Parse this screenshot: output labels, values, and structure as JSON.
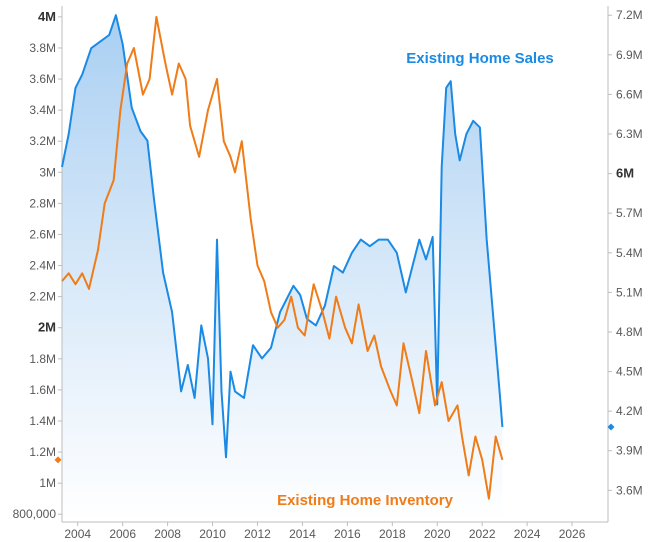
{
  "chart_data": {
    "type": "line",
    "title": "",
    "xlabel": "",
    "ylabel": "",
    "x_ticks": [
      "2004",
      "2006",
      "2008",
      "2010",
      "2012",
      "2014",
      "2016",
      "2018",
      "2020",
      "2022",
      "2024",
      "2026"
    ],
    "xlim": [
      2003.3,
      2027.6
    ],
    "left_axis": {
      "ylim": [
        750000,
        4070000
      ],
      "ticks": [
        {
          "value": 800000,
          "label": "800,000",
          "bold": false
        },
        {
          "value": 1000000,
          "label": "1M",
          "bold": false
        },
        {
          "value": 1200000,
          "label": "1.2M",
          "bold": false
        },
        {
          "value": 1400000,
          "label": "1.4M",
          "bold": false
        },
        {
          "value": 1600000,
          "label": "1.6M",
          "bold": false
        },
        {
          "value": 1800000,
          "label": "1.8M",
          "bold": false
        },
        {
          "value": 2000000,
          "label": "2M",
          "bold": true
        },
        {
          "value": 2200000,
          "label": "2.2M",
          "bold": false
        },
        {
          "value": 2400000,
          "label": "2.4M",
          "bold": false
        },
        {
          "value": 2600000,
          "label": "2.6M",
          "bold": false
        },
        {
          "value": 2800000,
          "label": "2.8M",
          "bold": false
        },
        {
          "value": 3000000,
          "label": "3M",
          "bold": false
        },
        {
          "value": 3200000,
          "label": "3.2M",
          "bold": false
        },
        {
          "value": 3400000,
          "label": "3.4M",
          "bold": false
        },
        {
          "value": 3600000,
          "label": "3.6M",
          "bold": false
        },
        {
          "value": 3800000,
          "label": "3.8M",
          "bold": false
        },
        {
          "value": 4000000,
          "label": "4M",
          "bold": true
        }
      ]
    },
    "right_axis": {
      "ylim": [
        3360000,
        7270000
      ],
      "ticks": [
        {
          "value": 3600000,
          "label": "3.6M",
          "bold": false
        },
        {
          "value": 3900000,
          "label": "3.9M",
          "bold": false
        },
        {
          "value": 4200000,
          "label": "4.2M",
          "bold": false
        },
        {
          "value": 4500000,
          "label": "4.5M",
          "bold": false
        },
        {
          "value": 4800000,
          "label": "4.8M",
          "bold": false
        },
        {
          "value": 5100000,
          "label": "5.1M",
          "bold": false
        },
        {
          "value": 5400000,
          "label": "5.4M",
          "bold": false
        },
        {
          "value": 5700000,
          "label": "5.7M",
          "bold": false
        },
        {
          "value": 6000000,
          "label": "6M",
          "bold": true
        },
        {
          "value": 6300000,
          "label": "6.3M",
          "bold": false
        },
        {
          "value": 6600000,
          "label": "6.6M",
          "bold": false
        },
        {
          "value": 6900000,
          "label": "6.9M",
          "bold": false
        },
        {
          "value": 7200000,
          "label": "7.2M",
          "bold": false
        }
      ]
    },
    "series": [
      {
        "name": "Existing Home Sales",
        "axis": "right",
        "color": "#1a8ae5",
        "style": "area",
        "last_value": 4080000,
        "x": [
          2003.3,
          2003.6,
          2003.9,
          2004.2,
          2004.6,
          2005.0,
          2005.4,
          2005.7,
          2006.0,
          2006.4,
          2006.8,
          2007.1,
          2007.4,
          2007.8,
          2008.2,
          2008.6,
          2008.9,
          2009.2,
          2009.5,
          2009.8,
          2010.0,
          2010.2,
          2010.4,
          2010.6,
          2010.8,
          2011.0,
          2011.4,
          2011.8,
          2012.2,
          2012.6,
          2013.0,
          2013.3,
          2013.6,
          2013.9,
          2014.2,
          2014.6,
          2015.0,
          2015.4,
          2015.8,
          2016.2,
          2016.6,
          2017.0,
          2017.4,
          2017.8,
          2018.2,
          2018.6,
          2018.9,
          2019.2,
          2019.5,
          2019.8,
          2020.0,
          2020.2,
          2020.4,
          2020.6,
          2020.8,
          2021.0,
          2021.3,
          2021.6,
          2021.9,
          2022.2,
          2022.5,
          2022.8,
          2022.9
        ],
        "y": [
          6050000,
          6300000,
          6650000,
          6750000,
          6950000,
          7000000,
          7050000,
          7200000,
          6980000,
          6500000,
          6320000,
          6250000,
          5800000,
          5250000,
          4950000,
          4350000,
          4550000,
          4300000,
          4850000,
          4600000,
          4100000,
          5500000,
          4350000,
          3850000,
          4500000,
          4350000,
          4300000,
          4700000,
          4600000,
          4680000,
          4950000,
          5050000,
          5150000,
          5080000,
          4900000,
          4850000,
          5000000,
          5300000,
          5250000,
          5400000,
          5500000,
          5450000,
          5500000,
          5500000,
          5400000,
          5100000,
          5300000,
          5500000,
          5350000,
          5520000,
          4250000,
          6050000,
          6650000,
          6700000,
          6300000,
          6100000,
          6300000,
          6400000,
          6350000,
          5500000,
          4900000,
          4300000,
          4080000
        ]
      },
      {
        "name": "Existing Home Inventory",
        "axis": "left",
        "color": "#f07c18",
        "style": "line",
        "last_value": 1150000,
        "x": [
          2003.3,
          2003.6,
          2003.9,
          2004.2,
          2004.5,
          2004.9,
          2005.2,
          2005.6,
          2005.9,
          2006.2,
          2006.5,
          2006.9,
          2007.2,
          2007.5,
          2007.9,
          2008.2,
          2008.5,
          2008.8,
          2009.0,
          2009.4,
          2009.8,
          2010.2,
          2010.5,
          2010.8,
          2011.0,
          2011.3,
          2011.7,
          2012.0,
          2012.3,
          2012.6,
          2012.9,
          2013.2,
          2013.5,
          2013.8,
          2014.1,
          2014.5,
          2014.9,
          2015.2,
          2015.5,
          2015.9,
          2016.2,
          2016.5,
          2016.9,
          2017.2,
          2017.5,
          2017.9,
          2018.2,
          2018.5,
          2018.9,
          2019.2,
          2019.5,
          2019.9,
          2020.2,
          2020.5,
          2020.9,
          2021.1,
          2021.4,
          2021.7,
          2022.0,
          2022.3,
          2022.6,
          2022.9
        ],
        "y": [
          2300000,
          2350000,
          2280000,
          2350000,
          2250000,
          2500000,
          2800000,
          2950000,
          3400000,
          3700000,
          3800000,
          3500000,
          3600000,
          4000000,
          3700000,
          3500000,
          3700000,
          3600000,
          3300000,
          3100000,
          3400000,
          3600000,
          3200000,
          3100000,
          3000000,
          3200000,
          2700000,
          2400000,
          2300000,
          2100000,
          2000000,
          2050000,
          2200000,
          2000000,
          1950000,
          2280000,
          2100000,
          1930000,
          2200000,
          2000000,
          1900000,
          2150000,
          1850000,
          1950000,
          1750000,
          1600000,
          1500000,
          1900000,
          1650000,
          1450000,
          1850000,
          1500000,
          1650000,
          1400000,
          1500000,
          1300000,
          1050000,
          1300000,
          1150000,
          900000,
          1300000,
          1150000
        ]
      }
    ]
  },
  "labels": {
    "sales": "Existing Home Sales",
    "inventory": "Existing Home Inventory"
  }
}
